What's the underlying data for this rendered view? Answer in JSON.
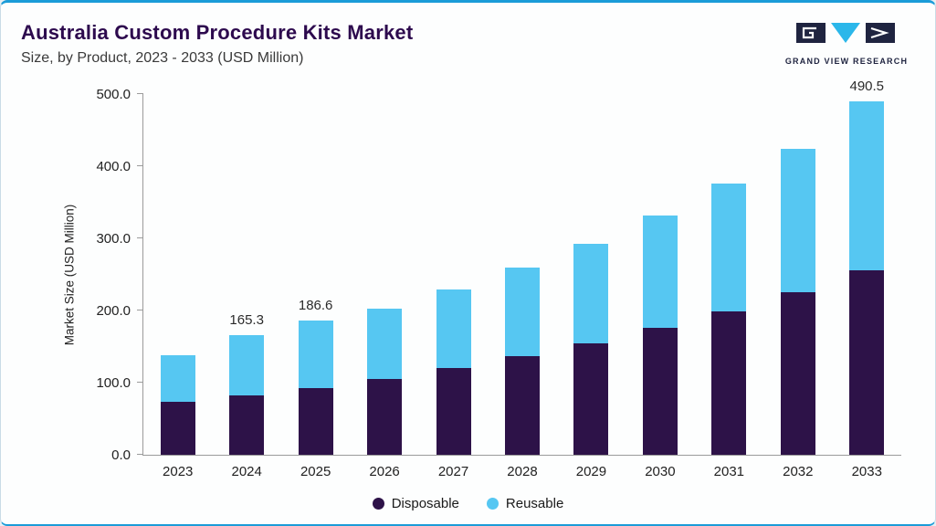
{
  "header": {
    "title": "Australia Custom Procedure Kits Market",
    "subtitle": "Size, by Product, 2023 - 2033 (USD Million)",
    "logo_text": "GRAND VIEW RESEARCH"
  },
  "chart_data": {
    "type": "bar",
    "stacked": true,
    "title": "Australia Custom Procedure Kits Market Size, by Product, 2023 - 2033 (USD Million)",
    "xlabel": "",
    "ylabel": "Market Size (USD Million)",
    "ylim": [
      0,
      500
    ],
    "ytick_labels": [
      "0.0",
      "100.0",
      "200.0",
      "300.0",
      "400.0",
      "500.0"
    ],
    "grid": false,
    "legend_position": "bottom",
    "categories": [
      "2023",
      "2024",
      "2025",
      "2026",
      "2027",
      "2028",
      "2029",
      "2030",
      "2031",
      "2032",
      "2033"
    ],
    "series": [
      {
        "name": "Disposable",
        "color": "#2d1248",
        "values": [
          73.0,
          82.5,
          93.0,
          105.0,
          120.5,
          136.5,
          155.0,
          176.0,
          199.0,
          225.0,
          255.5
        ]
      },
      {
        "name": "Reusable",
        "color": "#56c7f2",
        "values": [
          65.0,
          82.8,
          93.6,
          97.5,
          108.5,
          122.5,
          138.0,
          155.5,
          176.5,
          199.5,
          235.0
        ]
      }
    ],
    "totals": [
      138.0,
      165.3,
      186.6,
      202.5,
      229.0,
      259.0,
      293.0,
      331.5,
      375.5,
      424.5,
      490.5
    ],
    "total_labels": {
      "2024": "165.3",
      "2025": "186.6",
      "2033": "490.5"
    }
  },
  "colors": {
    "accent_blue": "#1b9cd8",
    "title_purple": "#2d0a4e",
    "disposable": "#2d1248",
    "reusable": "#56c7f2"
  }
}
